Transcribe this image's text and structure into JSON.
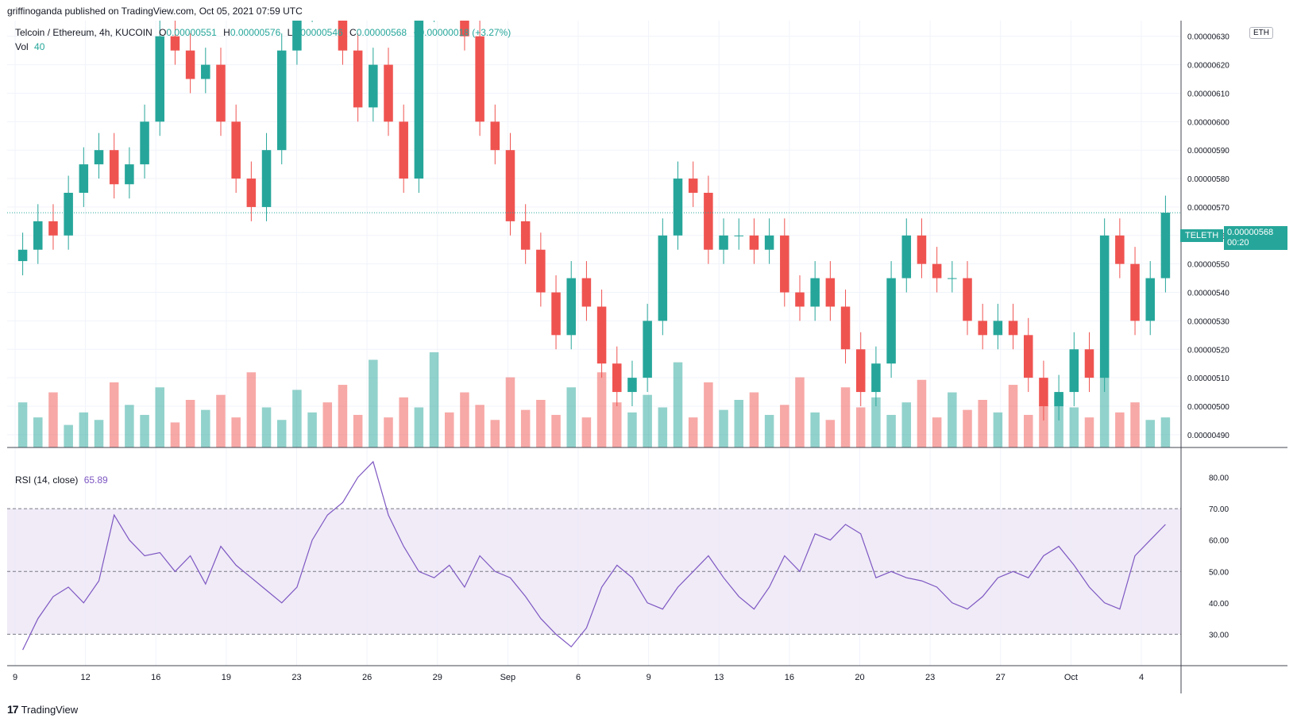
{
  "publisher": "griffinoganda published on TradingView.com, Oct 05, 2021 07:59 UTC",
  "footer_logo": "17",
  "footer_brand": "TradingView",
  "currency": "ETH",
  "legend": {
    "symbol": "Telcoin / Ethereum, 4h, KUCOIN",
    "o_label": "O",
    "o": "0.00000551",
    "h_label": "H",
    "h": "0.00000576",
    "l_label": "L",
    "l": "0.00000546",
    "c_label": "C",
    "c": "0.00000568",
    "change": "+0.00000018 (+3.27%)",
    "vol_label": "Vol",
    "vol": "40"
  },
  "rsi_legend": {
    "label": "RSI (14, close)",
    "value": "65.89"
  },
  "price_tag": {
    "ticker": "TELETH",
    "price": "0.00000568",
    "countdown": "00:20"
  },
  "colors": {
    "up": "#26a69a",
    "down": "#ef5350",
    "rsi": "#7e57c2",
    "band": "#ede7f6",
    "tag": "#26a69a"
  },
  "chart_data": [
    {
      "type": "candlestick",
      "price_axis_ticks": [
        "0.00000630",
        "0.00000620",
        "0.00000610",
        "0.00000600",
        "0.00000590",
        "0.00000580",
        "0.00000570",
        "0.00000560",
        "0.00000550",
        "0.00000540",
        "0.00000530",
        "0.00000520",
        "0.00000510",
        "0.00000500",
        "0.00000490"
      ],
      "price_range": [
        4.855e-06,
        6.355e-06
      ],
      "x_tick_labels": [
        "9",
        "12",
        "16",
        "19",
        "23",
        "26",
        "29",
        "Sep",
        "6",
        "9",
        "13",
        "16",
        "20",
        "23",
        "27",
        "Oct",
        "4"
      ],
      "last_close": 5.68e-06,
      "closes": [
        5.55e-06,
        5.65e-06,
        5.6e-06,
        5.75e-06,
        5.85e-06,
        5.9e-06,
        5.78e-06,
        5.85e-06,
        6e-06,
        6.3e-06,
        6.25e-06,
        6.15e-06,
        6.2e-06,
        6e-06,
        5.8e-06,
        5.7e-06,
        5.9e-06,
        6.25e-06,
        6.4e-06,
        6.5e-06,
        6.42e-06,
        6.25e-06,
        6.05e-06,
        6.2e-06,
        6e-06,
        5.8e-06,
        6.4e-06,
        6.6e-06,
        6.55e-06,
        6.3e-06,
        6e-06,
        5.9e-06,
        5.65e-06,
        5.55e-06,
        5.4e-06,
        5.25e-06,
        5.45e-06,
        5.35e-06,
        5.15e-06,
        5.05e-06,
        5.1e-06,
        5.3e-06,
        5.6e-06,
        5.8e-06,
        5.75e-06,
        5.55e-06,
        5.6e-06,
        5.6e-06,
        5.55e-06,
        5.6e-06,
        5.4e-06,
        5.35e-06,
        5.45e-06,
        5.35e-06,
        5.2e-06,
        5.05e-06,
        5.15e-06,
        5.45e-06,
        5.6e-06,
        5.5e-06,
        5.45e-06,
        5.45e-06,
        5.3e-06,
        5.25e-06,
        5.3e-06,
        5.25e-06,
        5.1e-06,
        5e-06,
        5.05e-06,
        5.2e-06,
        5.1e-06,
        5.6e-06,
        5.5e-06,
        5.3e-06,
        5.45e-06,
        5.68e-06
      ],
      "volume_bars": [
        18,
        12,
        22,
        9,
        14,
        11,
        26,
        17,
        13,
        24,
        10,
        19,
        15,
        21,
        12,
        30,
        16,
        11,
        23,
        14,
        18,
        25,
        13,
        35,
        12,
        20,
        16,
        38,
        14,
        22,
        17,
        11,
        28,
        15,
        19,
        13,
        24,
        12,
        30,
        18,
        14,
        21,
        16,
        34,
        12,
        26,
        15,
        19,
        22,
        13,
        17,
        28,
        14,
        11,
        24,
        16,
        20,
        13,
        18,
        27,
        12,
        22,
        15,
        19,
        14,
        25,
        13,
        17,
        21,
        16,
        12,
        31,
        14,
        18,
        11,
        12
      ],
      "volume_unit": "relative"
    },
    {
      "type": "line",
      "title": "RSI (14, close)",
      "y_axis_ticks": [
        "80.00",
        "70.00",
        "60.00",
        "50.00",
        "40.00",
        "30.00"
      ],
      "ylim": [
        22,
        88
      ],
      "bands": [
        30,
        50,
        70
      ],
      "values": [
        25,
        35,
        42,
        45,
        40,
        47,
        68,
        60,
        55,
        56,
        50,
        55,
        46,
        58,
        52,
        48,
        44,
        40,
        45,
        60,
        68,
        72,
        80,
        85,
        68,
        58,
        50,
        48,
        52,
        45,
        55,
        50,
        48,
        42,
        35,
        30,
        26,
        32,
        45,
        52,
        48,
        40,
        38,
        45,
        50,
        55,
        48,
        42,
        38,
        45,
        55,
        50,
        62,
        60,
        65,
        62,
        48,
        50,
        48,
        47,
        45,
        40,
        38,
        42,
        48,
        50,
        48,
        55,
        58,
        52,
        45,
        40,
        38,
        55,
        60,
        65
      ]
    }
  ]
}
